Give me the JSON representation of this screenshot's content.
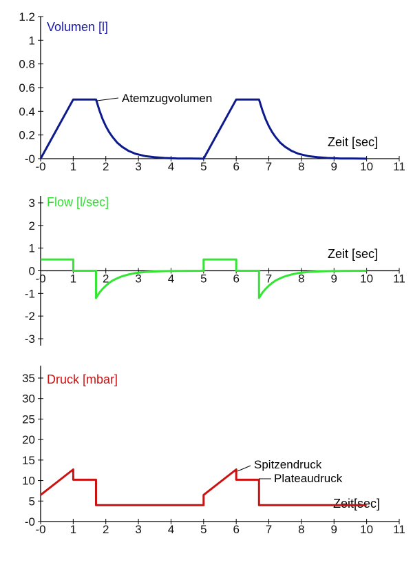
{
  "chart_data": [
    {
      "type": "line",
      "title": "Volumen [l]",
      "title_color": "#1a1aa6",
      "xlabel": "Zeit [sec]",
      "ylabel": "",
      "color": "#0d1a8c",
      "xlim": [
        0,
        11
      ],
      "ylim": [
        0,
        1.2
      ],
      "x_ticks": [
        0,
        1,
        2,
        3,
        4,
        5,
        6,
        7,
        8,
        9,
        10,
        11
      ],
      "x_tick_labels": [
        "-0",
        "1",
        "2",
        "3",
        "4",
        "5",
        "6",
        "7",
        "8",
        "9",
        "10",
        "11"
      ],
      "y_ticks": [
        0,
        0.2,
        0.4,
        0.6,
        0.8,
        1,
        1.2
      ],
      "y_tick_labels": [
        "-0",
        "0.2",
        "0.4",
        "0.6",
        "0.8",
        "1",
        "1.2"
      ],
      "series": [
        {
          "x": [
            0,
            1,
            1.7,
            1.8,
            1.9,
            2.0,
            2.1,
            2.2,
            2.35,
            2.5,
            2.7,
            2.9,
            3.2,
            3.5,
            3.8,
            4.2,
            4.6,
            5,
            6,
            6.7,
            6.8,
            6.9,
            7.0,
            7.1,
            7.2,
            7.35,
            7.5,
            7.7,
            7.9,
            8.2,
            8.5,
            8.8,
            9.2,
            9.6,
            10
          ],
          "y": [
            0,
            0.5,
            0.5,
            0.41,
            0.335,
            0.275,
            0.225,
            0.185,
            0.135,
            0.1,
            0.065,
            0.042,
            0.022,
            0.012,
            0.006,
            0.002,
            0.001,
            0,
            0.5,
            0.5,
            0.41,
            0.335,
            0.275,
            0.225,
            0.185,
            0.135,
            0.1,
            0.065,
            0.042,
            0.022,
            0.012,
            0.006,
            0.002,
            0.001,
            0
          ]
        }
      ],
      "annotations": [
        {
          "text": "Atemzugvolumen",
          "x": 1.7,
          "y": 0.5
        }
      ]
    },
    {
      "type": "line",
      "title": "Flow [l/sec]",
      "title_color": "#2ee02e",
      "xlabel": "Zeit [sec]",
      "ylabel": "",
      "color": "#33e633",
      "xlim": [
        0,
        11
      ],
      "ylim": [
        -3.5,
        3.5
      ],
      "x_ticks": [
        0,
        1,
        2,
        3,
        4,
        5,
        6,
        7,
        8,
        9,
        10,
        11
      ],
      "x_tick_labels": [
        "-0",
        "1",
        "2",
        "3",
        "4",
        "5",
        "6",
        "7",
        "8",
        "9",
        "10",
        "11"
      ],
      "y_ticks": [
        -3,
        -2,
        -1,
        0,
        1,
        2,
        3
      ],
      "y_tick_labels": [
        "-3",
        "-2",
        "-1",
        "0",
        "1",
        "2",
        "3"
      ],
      "series": [
        {
          "x": [
            0,
            1,
            1,
            1.7,
            1.7,
            1.8,
            1.9,
            2.0,
            2.1,
            2.2,
            2.35,
            2.5,
            2.7,
            2.9,
            3.2,
            3.5,
            3.8,
            4.2,
            5,
            5,
            6,
            6,
            6.7,
            6.7,
            6.8,
            6.9,
            7.0,
            7.1,
            7.2,
            7.35,
            7.5,
            7.7,
            7.9,
            8.2,
            8.5,
            8.8,
            9.2,
            10
          ],
          "y": [
            0.5,
            0.5,
            0,
            0,
            -1.2,
            -0.97,
            -0.8,
            -0.66,
            -0.54,
            -0.44,
            -0.33,
            -0.245,
            -0.16,
            -0.105,
            -0.055,
            -0.03,
            -0.015,
            -0.005,
            0,
            0.5,
            0.5,
            0,
            0,
            -1.2,
            -0.97,
            -0.8,
            -0.66,
            -0.54,
            -0.44,
            -0.33,
            -0.245,
            -0.16,
            -0.105,
            -0.055,
            -0.03,
            -0.015,
            -0.005,
            0
          ]
        }
      ],
      "annotations": []
    },
    {
      "type": "line",
      "title": "Druck [mbar]",
      "title_color": "#d01010",
      "xlabel": "Zeit[sec]",
      "ylabel": "",
      "color": "#cc1111",
      "xlim": [
        0,
        11
      ],
      "ylim": [
        0,
        38
      ],
      "x_ticks": [
        0,
        1,
        2,
        3,
        4,
        5,
        6,
        7,
        8,
        9,
        10,
        11
      ],
      "x_tick_labels": [
        "-0",
        "1",
        "2",
        "3",
        "4",
        "5",
        "6",
        "7",
        "8",
        "9",
        "10",
        "11"
      ],
      "y_ticks": [
        0,
        5,
        10,
        15,
        20,
        25,
        30,
        35
      ],
      "y_tick_labels": [
        "-0",
        "5",
        "10",
        "15",
        "20",
        "25",
        "30",
        "35"
      ],
      "series": [
        {
          "x": [
            0,
            1,
            1,
            1.7,
            1.7,
            5,
            5,
            6,
            6,
            6.7,
            6.7,
            10
          ],
          "y": [
            6.5,
            12.7,
            10.2,
            10.2,
            4,
            4,
            6.5,
            12.7,
            10.2,
            10.2,
            4,
            4
          ]
        }
      ],
      "annotations": [
        {
          "text": "Spitzendruck",
          "x": 6,
          "y": 12.7
        },
        {
          "text": "Plateaudruck",
          "x": 6.7,
          "y": 10.2
        }
      ]
    }
  ]
}
